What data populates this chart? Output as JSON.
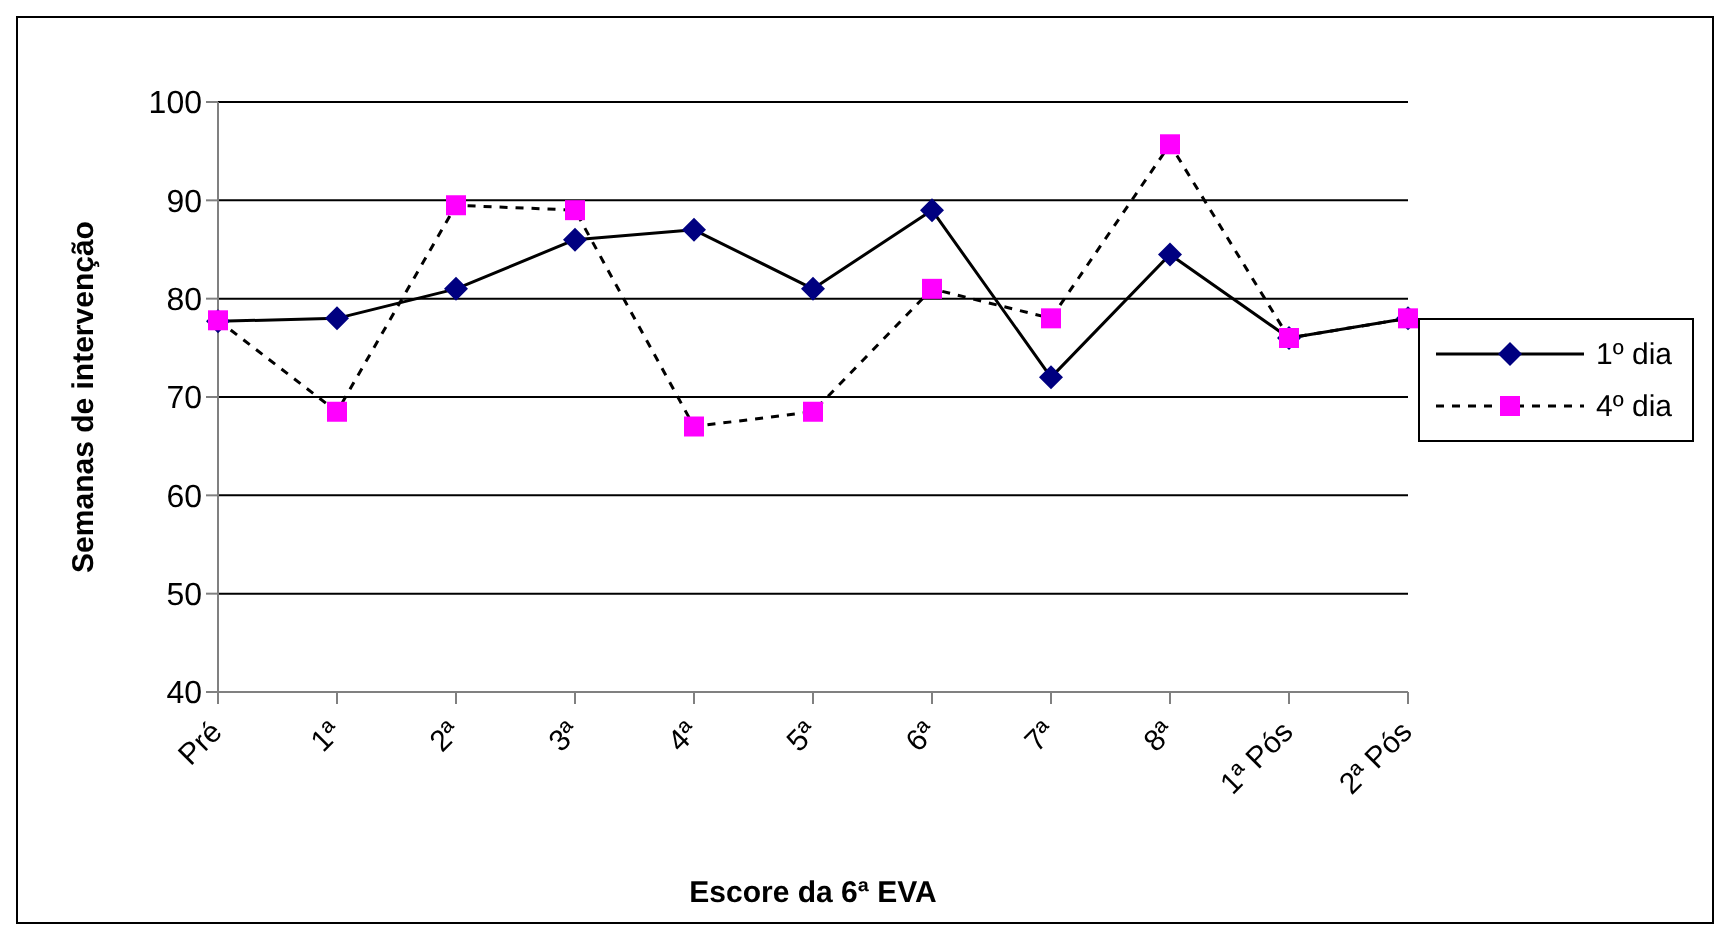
{
  "chart_data": {
    "type": "line",
    "xlabel": "Escore da 6ª EVA",
    "ylabel": "Semanas de intervenção",
    "categories": [
      "Pré",
      "1ª",
      "2ª",
      "3ª",
      "4ª",
      "5ª",
      "6ª",
      "7ª",
      "8ª",
      "1ª Pós",
      "2ª Pós"
    ],
    "series": [
      {
        "name": "1º dia",
        "color": "#000080",
        "marker": "diamond",
        "line_style": "solid",
        "values": [
          77.7,
          78,
          81,
          86,
          87,
          81,
          89,
          72,
          84.5,
          76,
          78
        ]
      },
      {
        "name": "4º dia",
        "color": "#ff00ff",
        "marker": "square",
        "line_style": "dashed",
        "values": [
          77.8,
          68.5,
          89.5,
          89,
          67,
          68.5,
          81,
          78,
          95.7,
          76,
          78
        ]
      }
    ],
    "ylim": [
      40,
      100
    ],
    "yticks": [
      40,
      50,
      60,
      70,
      80,
      90,
      100
    ],
    "grid": "y",
    "legend": "right"
  }
}
